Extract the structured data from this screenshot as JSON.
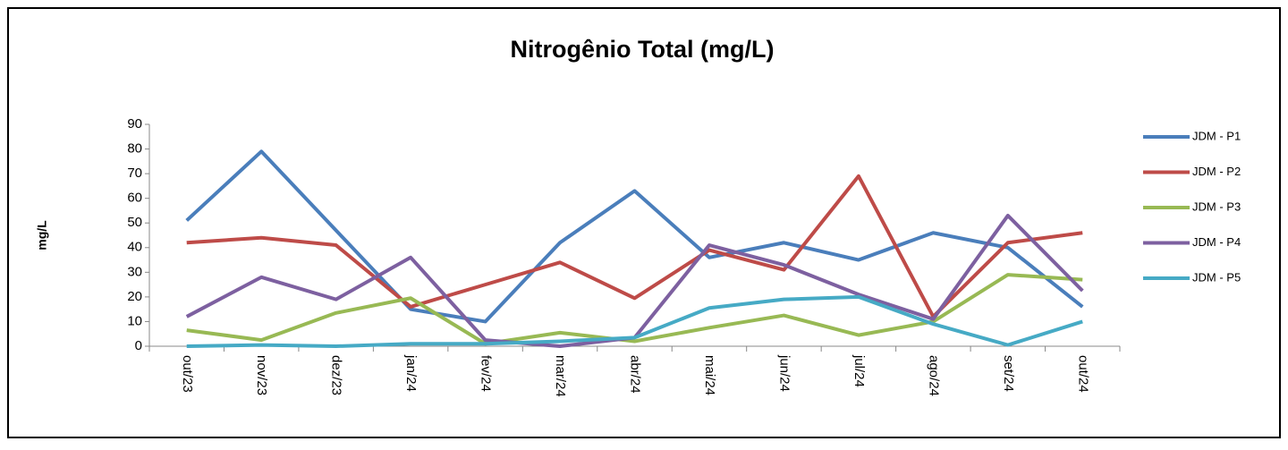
{
  "chart_data": {
    "type": "line",
    "title": "Nitrogênio Total (mg/L)",
    "y_label": "mg/L",
    "categories": [
      "out/23",
      "nov/23",
      "dez/23",
      "jan/24",
      "fev/24",
      "mar/24",
      "abr/24",
      "mai/24",
      "jun/24",
      "jul/24",
      "ago/24",
      "set/24",
      "out/24"
    ],
    "series": [
      {
        "name": "JDM - P1",
        "color": "#4a7ebb",
        "values": [
          51,
          79,
          47,
          15,
          10,
          42,
          63,
          36,
          42,
          35,
          46,
          40,
          16
        ]
      },
      {
        "name": "JDM - P2",
        "color": "#be4b48",
        "values": [
          42,
          44,
          41,
          16,
          25,
          34,
          19.5,
          39,
          31,
          69,
          12,
          42,
          46
        ]
      },
      {
        "name": "JDM - P3",
        "color": "#98b954",
        "values": [
          6.5,
          2.5,
          13.5,
          19.5,
          1,
          5.5,
          2,
          7.5,
          12.5,
          4.5,
          10,
          29,
          27
        ]
      },
      {
        "name": "JDM - P4",
        "color": "#7d60a0",
        "values": [
          12,
          28,
          19,
          36,
          2.5,
          0,
          3.5,
          41,
          33,
          21,
          11,
          53,
          22.5
        ]
      },
      {
        "name": "JDM - P5",
        "color": "#46aac5",
        "values": [
          0,
          0.5,
          0,
          1,
          1,
          2,
          3.5,
          15.5,
          19,
          20,
          9,
          0.5,
          10
        ]
      }
    ],
    "ylim": [
      0,
      90
    ],
    "yticks": [
      0,
      10,
      20,
      30,
      40,
      50,
      60,
      70,
      80,
      90
    ],
    "grid": false,
    "legend": "right"
  }
}
